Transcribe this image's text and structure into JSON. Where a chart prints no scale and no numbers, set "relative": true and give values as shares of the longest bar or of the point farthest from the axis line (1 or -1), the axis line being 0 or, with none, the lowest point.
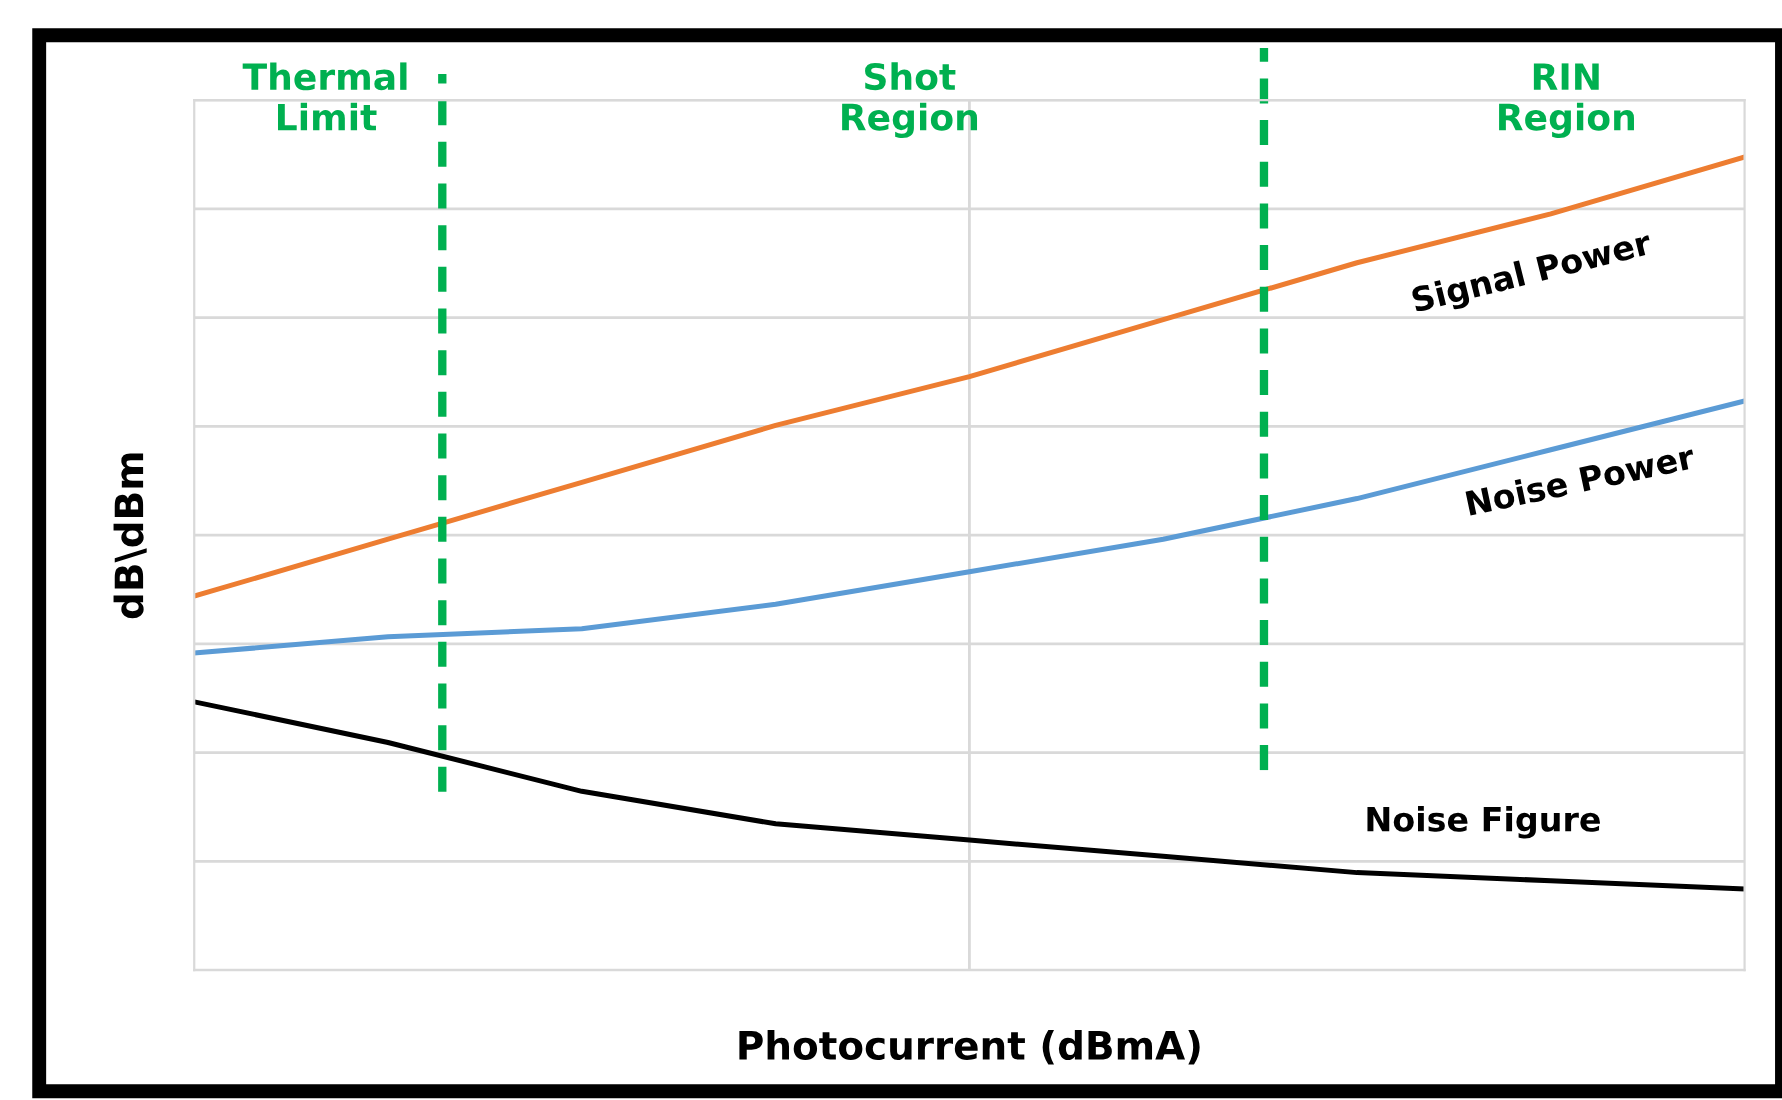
{
  "chart_data": {
    "type": "line",
    "relative": true,
    "xlabel": "Photocurrent (dBmA)",
    "ylabel": "dB\\dBm",
    "categories": [
      null,
      null,
      null,
      null,
      null,
      null,
      null,
      null,
      null
    ],
    "series": [
      {
        "name": "Signal Power",
        "color": "#ed7d31",
        "values": [
          0.46,
          0.53,
          0.6,
          0.67,
          0.73,
          0.8,
          0.87,
          0.93,
          1.0
        ]
      },
      {
        "name": "Noise Power",
        "color": "#5b9bd5",
        "values": [
          0.39,
          0.41,
          0.42,
          0.45,
          0.49,
          0.53,
          0.58,
          0.64,
          0.7
        ]
      },
      {
        "name": "Noise Figure",
        "color": "#000000",
        "values": [
          0.33,
          0.28,
          0.22,
          0.18,
          0.16,
          0.14,
          0.12,
          0.11,
          0.1
        ]
      }
    ],
    "annotations": [
      "Thermal\nLimit",
      "Shot\nRegion",
      "RIN\nRegion"
    ],
    "grid": true,
    "line_style": "solid",
    "marker": "none",
    "legend": false
  }
}
